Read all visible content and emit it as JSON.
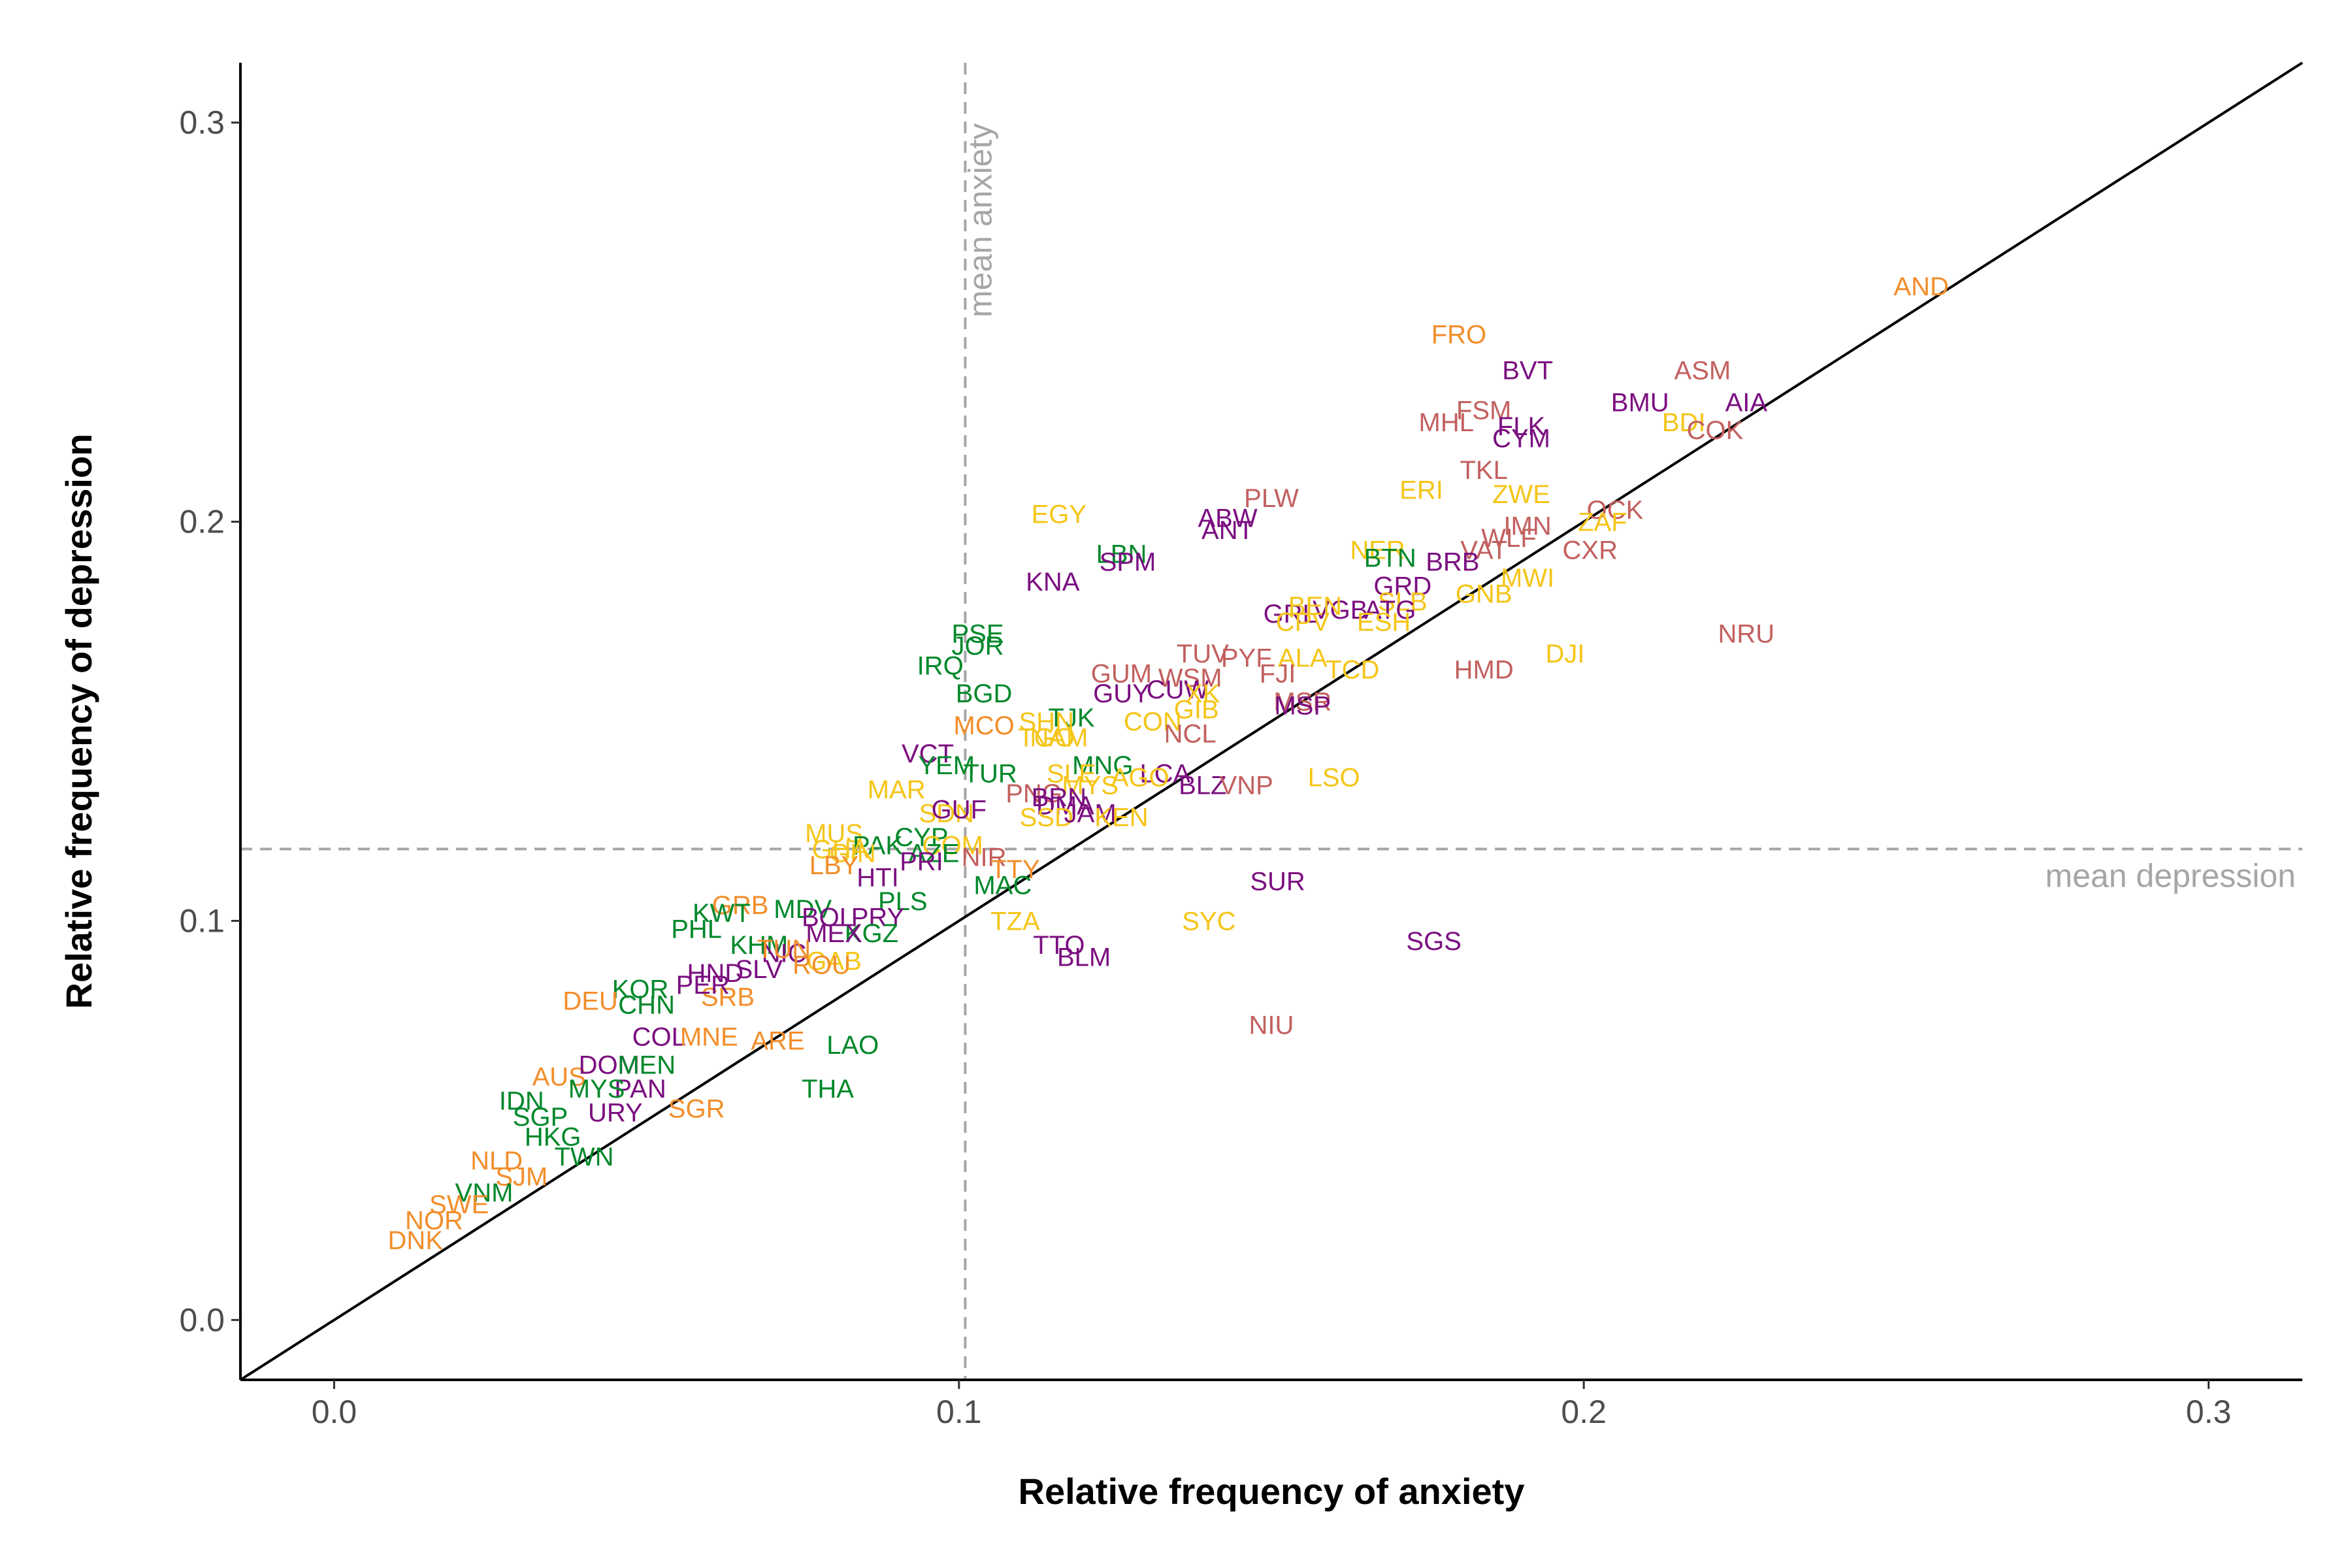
{
  "chart_data": {
    "type": "scatter",
    "title": "",
    "xlabel": "Relative frequency of anxiety",
    "ylabel": "Relative frequency of depression",
    "xlim": [
      -0.015,
      0.315
    ],
    "ylim": [
      -0.015,
      0.315
    ],
    "xticks": [
      {
        "value": 0.0,
        "label": "0.0"
      },
      {
        "value": 0.1,
        "label": "0.1"
      },
      {
        "value": 0.2,
        "label": "0.2"
      },
      {
        "value": 0.3,
        "label": "0.3"
      }
    ],
    "yticks": [
      {
        "value": 0.0,
        "label": "0.0"
      },
      {
        "value": 0.1,
        "label": "0.1"
      },
      {
        "value": 0.2,
        "label": "0.2"
      },
      {
        "value": 0.3,
        "label": "0.3"
      }
    ],
    "grid": false,
    "reference_lines": {
      "identity": true,
      "mean_anxiety": {
        "value": 0.101,
        "label": "mean anxiety"
      },
      "mean_depression": {
        "value": 0.118,
        "label": "mean depression"
      }
    },
    "colors": {
      "orange": "#F28E2B",
      "gold": "#F5C518",
      "green": "#00882B",
      "purple": "#7B0F80",
      "rose": "#C2605F"
    },
    "points": [
      {
        "label": "AND",
        "x": 0.254,
        "y": 0.259,
        "color": "orange"
      },
      {
        "label": "FRO",
        "x": 0.18,
        "y": 0.247,
        "color": "orange"
      },
      {
        "label": "BVT",
        "x": 0.191,
        "y": 0.238,
        "color": "purple"
      },
      {
        "label": "ASM",
        "x": 0.219,
        "y": 0.238,
        "color": "rose"
      },
      {
        "label": "BMU",
        "x": 0.209,
        "y": 0.23,
        "color": "purple"
      },
      {
        "label": "AIA",
        "x": 0.226,
        "y": 0.23,
        "color": "purple"
      },
      {
        "label": "FSM",
        "x": 0.184,
        "y": 0.228,
        "color": "rose"
      },
      {
        "label": "MHL",
        "x": 0.178,
        "y": 0.225,
        "color": "rose"
      },
      {
        "label": "FLK",
        "x": 0.19,
        "y": 0.224,
        "color": "purple"
      },
      {
        "label": "BDI",
        "x": 0.216,
        "y": 0.225,
        "color": "gold"
      },
      {
        "label": "COK",
        "x": 0.221,
        "y": 0.223,
        "color": "rose"
      },
      {
        "label": "CYM",
        "x": 0.19,
        "y": 0.221,
        "color": "purple"
      },
      {
        "label": "TKL",
        "x": 0.184,
        "y": 0.213,
        "color": "rose"
      },
      {
        "label": "PLW",
        "x": 0.15,
        "y": 0.206,
        "color": "rose"
      },
      {
        "label": "ERI",
        "x": 0.174,
        "y": 0.208,
        "color": "gold"
      },
      {
        "label": "ZWE",
        "x": 0.19,
        "y": 0.207,
        "color": "gold"
      },
      {
        "label": "EGY",
        "x": 0.116,
        "y": 0.202,
        "color": "gold"
      },
      {
        "label": "ABW",
        "x": 0.143,
        "y": 0.201,
        "color": "purple"
      },
      {
        "label": "ANT",
        "x": 0.143,
        "y": 0.198,
        "color": "purple"
      },
      {
        "label": "OCK",
        "x": 0.205,
        "y": 0.203,
        "color": "rose"
      },
      {
        "label": "ZAF",
        "x": 0.203,
        "y": 0.2,
        "color": "gold"
      },
      {
        "label": "IMN",
        "x": 0.191,
        "y": 0.199,
        "color": "rose"
      },
      {
        "label": "WLF",
        "x": 0.188,
        "y": 0.196,
        "color": "rose"
      },
      {
        "label": "NER",
        "x": 0.167,
        "y": 0.193,
        "color": "gold"
      },
      {
        "label": "BTN",
        "x": 0.169,
        "y": 0.191,
        "color": "green"
      },
      {
        "label": "VAT",
        "x": 0.184,
        "y": 0.193,
        "color": "rose"
      },
      {
        "label": "CXR",
        "x": 0.201,
        "y": 0.193,
        "color": "rose"
      },
      {
        "label": "BRB",
        "x": 0.179,
        "y": 0.19,
        "color": "purple"
      },
      {
        "label": "LBN",
        "x": 0.126,
        "y": 0.192,
        "color": "green"
      },
      {
        "label": "SPM",
        "x": 0.127,
        "y": 0.19,
        "color": "purple"
      },
      {
        "label": "MWI",
        "x": 0.191,
        "y": 0.186,
        "color": "gold"
      },
      {
        "label": "KNA",
        "x": 0.115,
        "y": 0.185,
        "color": "purple"
      },
      {
        "label": "GRD",
        "x": 0.171,
        "y": 0.184,
        "color": "purple"
      },
      {
        "label": "GNB",
        "x": 0.184,
        "y": 0.182,
        "color": "gold"
      },
      {
        "label": "SLB",
        "x": 0.171,
        "y": 0.18,
        "color": "gold"
      },
      {
        "label": "ATG",
        "x": 0.169,
        "y": 0.178,
        "color": "purple"
      },
      {
        "label": "GRL",
        "x": 0.153,
        "y": 0.177,
        "color": "purple"
      },
      {
        "label": "VGB",
        "x": 0.161,
        "y": 0.178,
        "color": "purple"
      },
      {
        "label": "BEN",
        "x": 0.157,
        "y": 0.179,
        "color": "gold"
      },
      {
        "label": "ESH",
        "x": 0.168,
        "y": 0.175,
        "color": "gold"
      },
      {
        "label": "CPV",
        "x": 0.155,
        "y": 0.175,
        "color": "gold"
      },
      {
        "label": "NRU",
        "x": 0.226,
        "y": 0.172,
        "color": "rose"
      },
      {
        "label": "PSE",
        "x": 0.103,
        "y": 0.172,
        "color": "green"
      },
      {
        "label": "JOR",
        "x": 0.103,
        "y": 0.169,
        "color": "green"
      },
      {
        "label": "TUV",
        "x": 0.139,
        "y": 0.167,
        "color": "rose"
      },
      {
        "label": "PYF",
        "x": 0.146,
        "y": 0.166,
        "color": "rose"
      },
      {
        "label": "ALA",
        "x": 0.155,
        "y": 0.166,
        "color": "gold"
      },
      {
        "label": "DJI",
        "x": 0.197,
        "y": 0.167,
        "color": "gold"
      },
      {
        "label": "IRQ",
        "x": 0.097,
        "y": 0.164,
        "color": "green"
      },
      {
        "label": "FJI",
        "x": 0.151,
        "y": 0.162,
        "color": "rose"
      },
      {
        "label": "TCD",
        "x": 0.163,
        "y": 0.163,
        "color": "gold"
      },
      {
        "label": "HMD",
        "x": 0.184,
        "y": 0.163,
        "color": "rose"
      },
      {
        "label": "GUM",
        "x": 0.126,
        "y": 0.162,
        "color": "rose"
      },
      {
        "label": "WSM",
        "x": 0.137,
        "y": 0.161,
        "color": "rose"
      },
      {
        "label": "CUW",
        "x": 0.135,
        "y": 0.158,
        "color": "purple"
      },
      {
        "label": "GUY",
        "x": 0.126,
        "y": 0.157,
        "color": "purple"
      },
      {
        "label": "XK",
        "x": 0.139,
        "y": 0.157,
        "color": "gold"
      },
      {
        "label": "BGD",
        "x": 0.104,
        "y": 0.157,
        "color": "green"
      },
      {
        "label": "MSR",
        "x": 0.155,
        "y": 0.155,
        "color": "rose"
      },
      {
        "label": "MSP",
        "x": 0.155,
        "y": 0.154,
        "color": "purple"
      },
      {
        "label": "GIB",
        "x": 0.138,
        "y": 0.153,
        "color": "gold"
      },
      {
        "label": "TJK",
        "x": 0.118,
        "y": 0.151,
        "color": "green"
      },
      {
        "label": "MCO",
        "x": 0.104,
        "y": 0.149,
        "color": "orange"
      },
      {
        "label": "SHN",
        "x": 0.114,
        "y": 0.15,
        "color": "gold"
      },
      {
        "label": "CON",
        "x": 0.131,
        "y": 0.15,
        "color": "gold"
      },
      {
        "label": "NCL",
        "x": 0.137,
        "y": 0.147,
        "color": "rose"
      },
      {
        "label": "TGO",
        "x": 0.114,
        "y": 0.146,
        "color": "gold"
      },
      {
        "label": "NAM",
        "x": 0.116,
        "y": 0.146,
        "color": "gold"
      },
      {
        "label": "VCT",
        "x": 0.095,
        "y": 0.142,
        "color": "purple"
      },
      {
        "label": "YEM",
        "x": 0.098,
        "y": 0.139,
        "color": "green"
      },
      {
        "label": "MNG",
        "x": 0.123,
        "y": 0.139,
        "color": "green"
      },
      {
        "label": "TUR",
        "x": 0.105,
        "y": 0.137,
        "color": "green"
      },
      {
        "label": "LCA",
        "x": 0.133,
        "y": 0.137,
        "color": "purple"
      },
      {
        "label": "SLE",
        "x": 0.118,
        "y": 0.137,
        "color": "gold"
      },
      {
        "label": "AGO",
        "x": 0.129,
        "y": 0.136,
        "color": "gold"
      },
      {
        "label": "MYS",
        "x": 0.121,
        "y": 0.134,
        "color": "gold"
      },
      {
        "label": "BLZ",
        "x": 0.139,
        "y": 0.134,
        "color": "purple"
      },
      {
        "label": "VNP",
        "x": 0.146,
        "y": 0.134,
        "color": "rose"
      },
      {
        "label": "LSO",
        "x": 0.16,
        "y": 0.136,
        "color": "gold"
      },
      {
        "label": "MAR",
        "x": 0.09,
        "y": 0.133,
        "color": "gold"
      },
      {
        "label": "PNG",
        "x": 0.112,
        "y": 0.132,
        "color": "rose"
      },
      {
        "label": "BRN",
        "x": 0.116,
        "y": 0.131,
        "color": "purple"
      },
      {
        "label": "DMA",
        "x": 0.117,
        "y": 0.129,
        "color": "purple"
      },
      {
        "label": "SDN",
        "x": 0.098,
        "y": 0.127,
        "color": "gold"
      },
      {
        "label": "GUF",
        "x": 0.1,
        "y": 0.128,
        "color": "purple"
      },
      {
        "label": "SSD",
        "x": 0.114,
        "y": 0.126,
        "color": "gold"
      },
      {
        "label": "JAM",
        "x": 0.121,
        "y": 0.127,
        "color": "purple"
      },
      {
        "label": "KEN",
        "x": 0.126,
        "y": 0.126,
        "color": "gold"
      },
      {
        "label": "MUS",
        "x": 0.08,
        "y": 0.122,
        "color": "gold"
      },
      {
        "label": "PAK",
        "x": 0.087,
        "y": 0.119,
        "color": "green"
      },
      {
        "label": "CYP",
        "x": 0.094,
        "y": 0.121,
        "color": "green"
      },
      {
        "label": "COM",
        "x": 0.099,
        "y": 0.119,
        "color": "gold"
      },
      {
        "label": "GHA",
        "x": 0.081,
        "y": 0.118,
        "color": "gold"
      },
      {
        "label": "GIN",
        "x": 0.083,
        "y": 0.117,
        "color": "gold"
      },
      {
        "label": "AZE",
        "x": 0.096,
        "y": 0.117,
        "color": "green"
      },
      {
        "label": "NIR",
        "x": 0.104,
        "y": 0.116,
        "color": "rose"
      },
      {
        "label": "LBY",
        "x": 0.08,
        "y": 0.114,
        "color": "orange"
      },
      {
        "label": "PRI",
        "x": 0.094,
        "y": 0.115,
        "color": "purple"
      },
      {
        "label": "TTY",
        "x": 0.109,
        "y": 0.113,
        "color": "orange"
      },
      {
        "label": "HTI",
        "x": 0.087,
        "y": 0.111,
        "color": "purple"
      },
      {
        "label": "MAC",
        "x": 0.107,
        "y": 0.109,
        "color": "green"
      },
      {
        "label": "GRB",
        "x": 0.065,
        "y": 0.104,
        "color": "orange"
      },
      {
        "label": "MDV",
        "x": 0.075,
        "y": 0.103,
        "color": "green"
      },
      {
        "label": "PLS",
        "x": 0.091,
        "y": 0.105,
        "color": "green"
      },
      {
        "label": "KWT",
        "x": 0.062,
        "y": 0.102,
        "color": "green"
      },
      {
        "label": "BOL",
        "x": 0.079,
        "y": 0.101,
        "color": "purple"
      },
      {
        "label": "PRY",
        "x": 0.087,
        "y": 0.101,
        "color": "purple"
      },
      {
        "label": "TZA",
        "x": 0.109,
        "y": 0.1,
        "color": "gold"
      },
      {
        "label": "SYC",
        "x": 0.14,
        "y": 0.1,
        "color": "gold"
      },
      {
        "label": "SUR",
        "x": 0.151,
        "y": 0.11,
        "color": "purple"
      },
      {
        "label": "PHL",
        "x": 0.058,
        "y": 0.098,
        "color": "green"
      },
      {
        "label": "KGZ",
        "x": 0.086,
        "y": 0.097,
        "color": "green"
      },
      {
        "label": "MEX",
        "x": 0.08,
        "y": 0.097,
        "color": "purple"
      },
      {
        "label": "KHM",
        "x": 0.068,
        "y": 0.094,
        "color": "green"
      },
      {
        "label": "NIC",
        "x": 0.072,
        "y": 0.092,
        "color": "purple"
      },
      {
        "label": "TTO",
        "x": 0.116,
        "y": 0.094,
        "color": "purple"
      },
      {
        "label": "BLM",
        "x": 0.12,
        "y": 0.091,
        "color": "purple"
      },
      {
        "label": "SGS",
        "x": 0.176,
        "y": 0.095,
        "color": "purple"
      },
      {
        "label": "TUN",
        "x": 0.072,
        "y": 0.093,
        "color": "orange"
      },
      {
        "label": "GAB",
        "x": 0.08,
        "y": 0.09,
        "color": "gold"
      },
      {
        "label": "ROU",
        "x": 0.078,
        "y": 0.089,
        "color": "orange"
      },
      {
        "label": "HND",
        "x": 0.061,
        "y": 0.087,
        "color": "purple"
      },
      {
        "label": "SLV",
        "x": 0.068,
        "y": 0.088,
        "color": "purple"
      },
      {
        "label": "KOR",
        "x": 0.049,
        "y": 0.083,
        "color": "green"
      },
      {
        "label": "DEU",
        "x": 0.041,
        "y": 0.08,
        "color": "orange"
      },
      {
        "label": "SRB",
        "x": 0.063,
        "y": 0.081,
        "color": "orange"
      },
      {
        "label": "PER",
        "x": 0.059,
        "y": 0.084,
        "color": "purple"
      },
      {
        "label": "CHN",
        "x": 0.05,
        "y": 0.079,
        "color": "green"
      },
      {
        "label": "THA",
        "x": 0.079,
        "y": 0.058,
        "color": "green"
      },
      {
        "label": "LAO",
        "x": 0.083,
        "y": 0.069,
        "color": "green"
      },
      {
        "label": "ARE",
        "x": 0.071,
        "y": 0.07,
        "color": "orange"
      },
      {
        "label": "COL",
        "x": 0.052,
        "y": 0.071,
        "color": "purple"
      },
      {
        "label": "MNE",
        "x": 0.06,
        "y": 0.071,
        "color": "orange"
      },
      {
        "label": "AUS",
        "x": 0.036,
        "y": 0.061,
        "color": "orange"
      },
      {
        "label": "DOM",
        "x": 0.044,
        "y": 0.064,
        "color": "purple"
      },
      {
        "label": "MEN",
        "x": 0.05,
        "y": 0.064,
        "color": "green"
      },
      {
        "label": "PAN",
        "x": 0.049,
        "y": 0.058,
        "color": "purple"
      },
      {
        "label": "MYS",
        "x": 0.042,
        "y": 0.058,
        "color": "green"
      },
      {
        "label": "SGR",
        "x": 0.058,
        "y": 0.053,
        "color": "orange"
      },
      {
        "label": "IDN",
        "x": 0.03,
        "y": 0.055,
        "color": "green"
      },
      {
        "label": "URY",
        "x": 0.045,
        "y": 0.052,
        "color": "purple"
      },
      {
        "label": "SGP",
        "x": 0.033,
        "y": 0.051,
        "color": "green"
      },
      {
        "label": "HKG",
        "x": 0.035,
        "y": 0.046,
        "color": "green"
      },
      {
        "label": "TWN",
        "x": 0.04,
        "y": 0.041,
        "color": "green"
      },
      {
        "label": "NLD",
        "x": 0.026,
        "y": 0.04,
        "color": "orange"
      },
      {
        "label": "SJM",
        "x": 0.03,
        "y": 0.036,
        "color": "orange"
      },
      {
        "label": "VNM",
        "x": 0.024,
        "y": 0.032,
        "color": "green"
      },
      {
        "label": "SWE",
        "x": 0.02,
        "y": 0.029,
        "color": "orange"
      },
      {
        "label": "NOR",
        "x": 0.016,
        "y": 0.025,
        "color": "orange"
      },
      {
        "label": "DNK",
        "x": 0.013,
        "y": 0.02,
        "color": "orange"
      },
      {
        "label": "NIU",
        "x": 0.15,
        "y": 0.074,
        "color": "rose"
      }
    ]
  }
}
